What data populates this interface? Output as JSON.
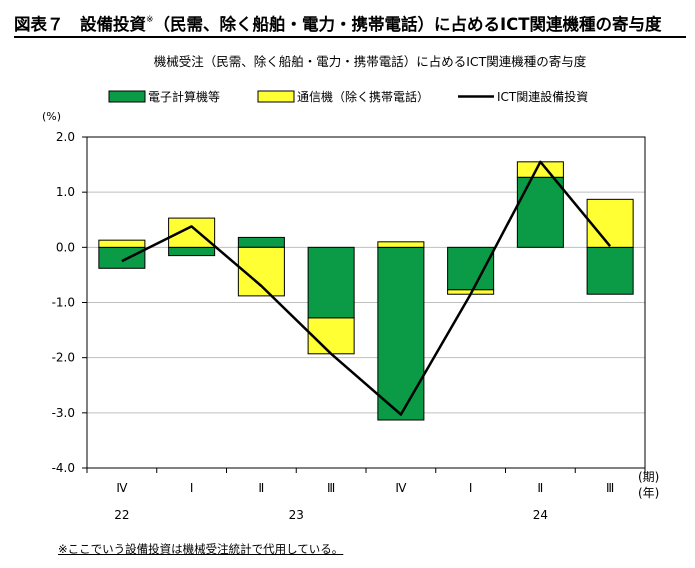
{
  "figure": {
    "title_main": "図表７　設備投資",
    "title_mark": "※",
    "title_rest": "（民需、除く船舶・電力・携帯電話）に占めるICT関連機種の寄与度",
    "footnote": "※ここでいう設備投資は機械受注統計で代用している。"
  },
  "colors": {
    "electronic_computer": "#0b9a45",
    "telecom": "#ffff33",
    "ict_line": "#000000",
    "bar_stroke": "#000000",
    "grid": "#bfbfbf"
  },
  "chart_data": {
    "type": "bar",
    "stacked": true,
    "title": "機械受注（民需、除く船舶・電力・携帯電話）に占めるICT関連機種の寄与度",
    "ylabel": "(%)",
    "ylim": [
      -4.0,
      2.0
    ],
    "yticks": [
      2.0,
      1.0,
      0.0,
      -1.0,
      -2.0,
      -3.0,
      -4.0
    ],
    "ytick_labels": [
      "2.0",
      "1.0",
      "0.0",
      "-1.0",
      "-2.0",
      "-3.0",
      "-4.0"
    ],
    "categories": [
      "Ⅳ",
      "Ⅰ",
      "Ⅱ",
      "Ⅲ",
      "Ⅳ",
      "Ⅰ",
      "Ⅱ",
      "Ⅲ"
    ],
    "year_labels": [
      {
        "label": "22",
        "index": 0
      },
      {
        "label": "23",
        "index": 2.5
      },
      {
        "label": "24",
        "index": 6
      }
    ],
    "x_unit_period": "(期)",
    "x_unit_year": "(年)",
    "grid": true,
    "legend_position": "top",
    "series": [
      {
        "name": "電子計算機等",
        "kind": "bar",
        "values": [
          -0.38,
          -0.15,
          0.18,
          -1.28,
          -3.13,
          -0.77,
          1.27,
          -0.85
        ]
      },
      {
        "name": "通信機（除く携帯電話）",
        "kind": "bar",
        "values": [
          0.13,
          0.53,
          -0.88,
          -0.65,
          0.1,
          -0.08,
          0.28,
          0.87
        ]
      },
      {
        "name": "ICT関連設備投資",
        "kind": "line",
        "values": [
          -0.25,
          0.38,
          -0.7,
          -1.93,
          -3.03,
          -0.85,
          1.55,
          0.02
        ]
      }
    ]
  }
}
